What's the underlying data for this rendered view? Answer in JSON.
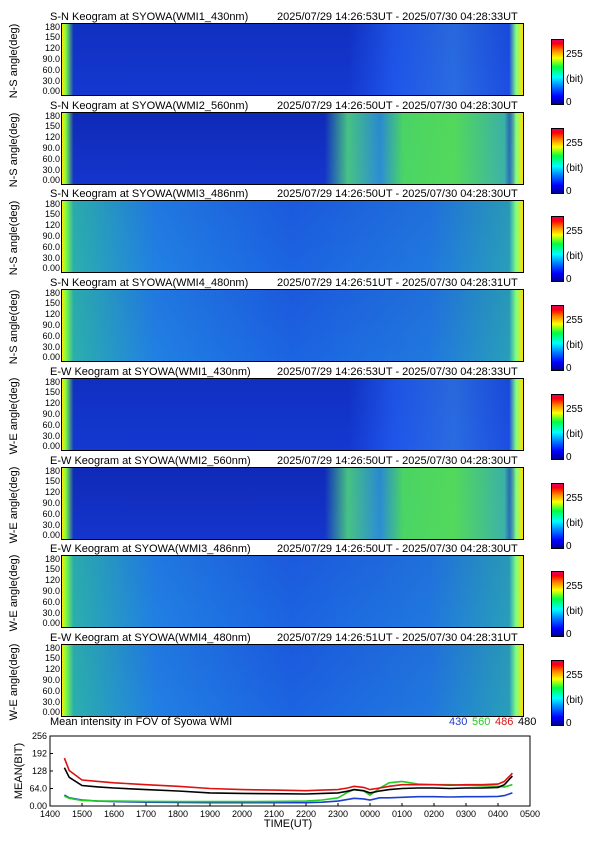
{
  "keograms": [
    {
      "title": "S-N Keogram at SYOWA(WMI1_430nm)",
      "time_range": "2025/07/29 14:26:53UT - 2025/07/30 04:28:33UT",
      "ylabel": "N-S angle(deg)",
      "style": "blue"
    },
    {
      "title": "S-N Keogram at SYOWA(WMI2_560nm)",
      "time_range": "2025/07/29 14:26:50UT - 2025/07/30 04:28:30UT",
      "ylabel": "N-S angle(deg)",
      "style": "green-aurora"
    },
    {
      "title": "S-N Keogram at SYOWA(WMI3_486nm)",
      "time_range": "2025/07/29 14:26:50UT - 2025/07/30 04:28:30UT",
      "ylabel": "N-S angle(deg)",
      "style": "cyan"
    },
    {
      "title": "S-N Keogram at SYOWA(WMI4_480nm)",
      "time_range": "2025/07/29 14:26:51UT - 2025/07/30 04:28:31UT",
      "ylabel": "N-S angle(deg)",
      "style": "cyan"
    },
    {
      "title": "E-W Keogram at SYOWA(WMI1_430nm)",
      "time_range": "2025/07/29 14:26:53UT - 2025/07/30 04:28:33UT",
      "ylabel": "W-E angle(deg)",
      "style": "blue"
    },
    {
      "title": "E-W Keogram at SYOWA(WMI2_560nm)",
      "time_range": "2025/07/29 14:26:50UT - 2025/07/30 04:28:30UT",
      "ylabel": "W-E angle(deg)",
      "style": "green-aurora"
    },
    {
      "title": "E-W Keogram at SYOWA(WMI3_486nm)",
      "time_range": "2025/07/29 14:26:50UT - 2025/07/30 04:28:30UT",
      "ylabel": "W-E angle(deg)",
      "style": "cyan"
    },
    {
      "title": "E-W Keogram at SYOWA(WMI4_480nm)",
      "time_range": "2025/07/29 14:26:51UT - 2025/07/30 04:28:31UT",
      "ylabel": "W-E angle(deg)",
      "style": "cyan"
    }
  ],
  "angle_ticks": [
    "180",
    "150",
    "120",
    "90.0",
    "60.0",
    "30.0",
    "0.00"
  ],
  "colorbar": {
    "max": "255",
    "unit": "(bit)",
    "min": "0"
  },
  "chart_data": {
    "type": "line",
    "title": "Mean intensity in FOV of Syowa WMI",
    "xlabel": "TIME(UT)",
    "ylabel": "MEAN(BIT)",
    "x_ticks": [
      "1400",
      "1500",
      "1600",
      "1700",
      "1800",
      "1900",
      "2000",
      "2100",
      "2200",
      "2300",
      "0000",
      "0100",
      "0200",
      "0300",
      "0400",
      "0500"
    ],
    "y_ticks": [
      "0.00",
      "64.0",
      "128",
      "192",
      "256"
    ],
    "ylim": [
      0,
      256
    ],
    "xlim": [
      14,
      29
    ],
    "x": [
      14.45,
      14.6,
      15,
      15.5,
      16,
      17,
      18,
      19,
      20,
      21,
      22,
      22.5,
      23,
      23.3,
      23.5,
      23.8,
      24,
      24.3,
      24.6,
      25,
      25.5,
      26,
      26.5,
      27,
      27.5,
      28,
      28.2,
      28.45
    ],
    "series": [
      {
        "name": "430",
        "color": "#1a3fd0",
        "values": [
          40,
          30,
          22,
          18,
          16,
          14,
          13,
          12,
          12,
          12,
          12,
          14,
          18,
          24,
          28,
          26,
          22,
          30,
          30,
          32,
          34,
          34,
          33,
          34,
          34,
          35,
          38,
          48
        ]
      },
      {
        "name": "560",
        "color": "#22cc22",
        "values": [
          36,
          28,
          20,
          18,
          18,
          17,
          16,
          16,
          16,
          17,
          18,
          22,
          30,
          50,
          60,
          55,
          40,
          65,
          85,
          90,
          80,
          78,
          78,
          76,
          74,
          72,
          70,
          78
        ]
      },
      {
        "name": "486",
        "color": "#dd1111",
        "values": [
          175,
          130,
          95,
          90,
          85,
          78,
          72,
          64,
          60,
          58,
          56,
          58,
          60,
          66,
          72,
          68,
          60,
          66,
          72,
          78,
          78,
          78,
          76,
          78,
          78,
          80,
          90,
          120
        ]
      },
      {
        "name": "480",
        "color": "#000000",
        "values": [
          140,
          105,
          75,
          70,
          66,
          60,
          55,
          48,
          46,
          45,
          44,
          46,
          48,
          54,
          60,
          56,
          48,
          55,
          60,
          64,
          66,
          66,
          64,
          66,
          66,
          68,
          78,
          110
        ]
      }
    ]
  }
}
